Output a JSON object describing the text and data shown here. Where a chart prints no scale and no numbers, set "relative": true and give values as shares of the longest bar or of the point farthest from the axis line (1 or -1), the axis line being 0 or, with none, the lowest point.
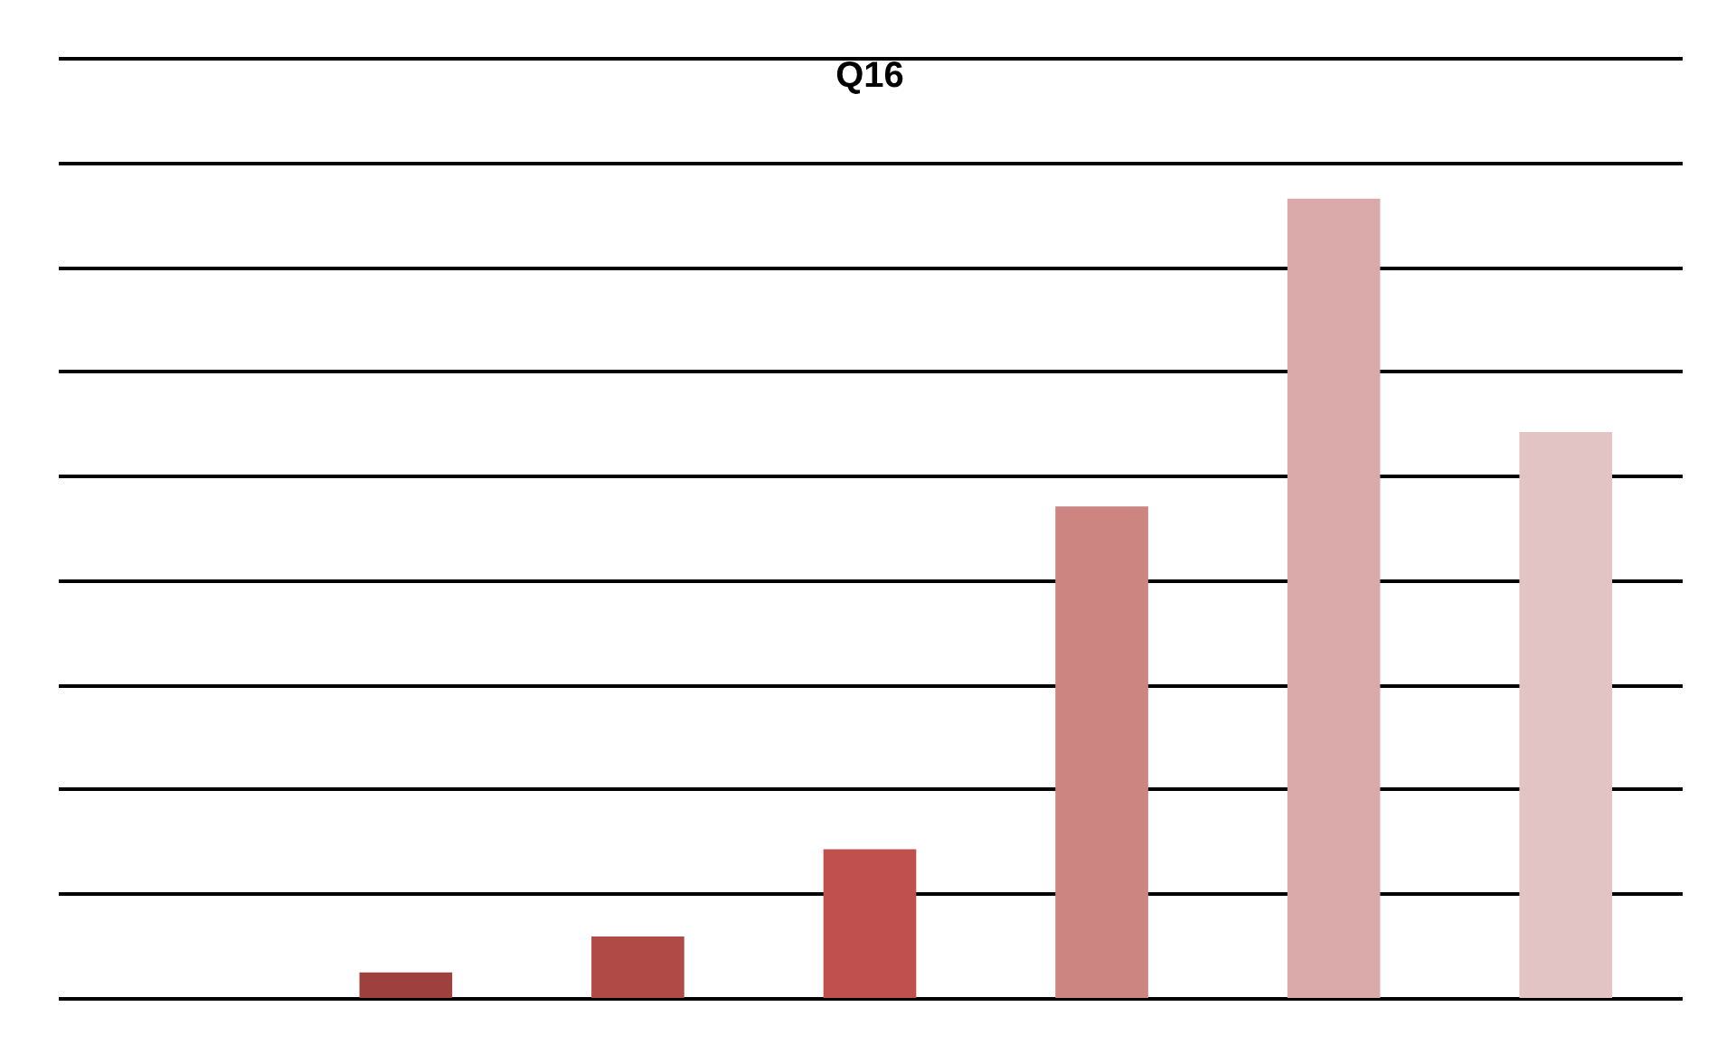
{
  "chart_data": {
    "type": "bar",
    "title": "Q16",
    "categories": [
      null,
      null,
      null,
      null,
      null,
      null
    ],
    "values": [
      0.032,
      0.077,
      0.186,
      0.615,
      1,
      0.708
    ],
    "colors": [
      "#9e403e",
      "#b04a47",
      "#c0504d",
      "#cd8582",
      "#daa9aa",
      "#e2c4c5"
    ],
    "relative": true,
    "grid": "y"
  }
}
